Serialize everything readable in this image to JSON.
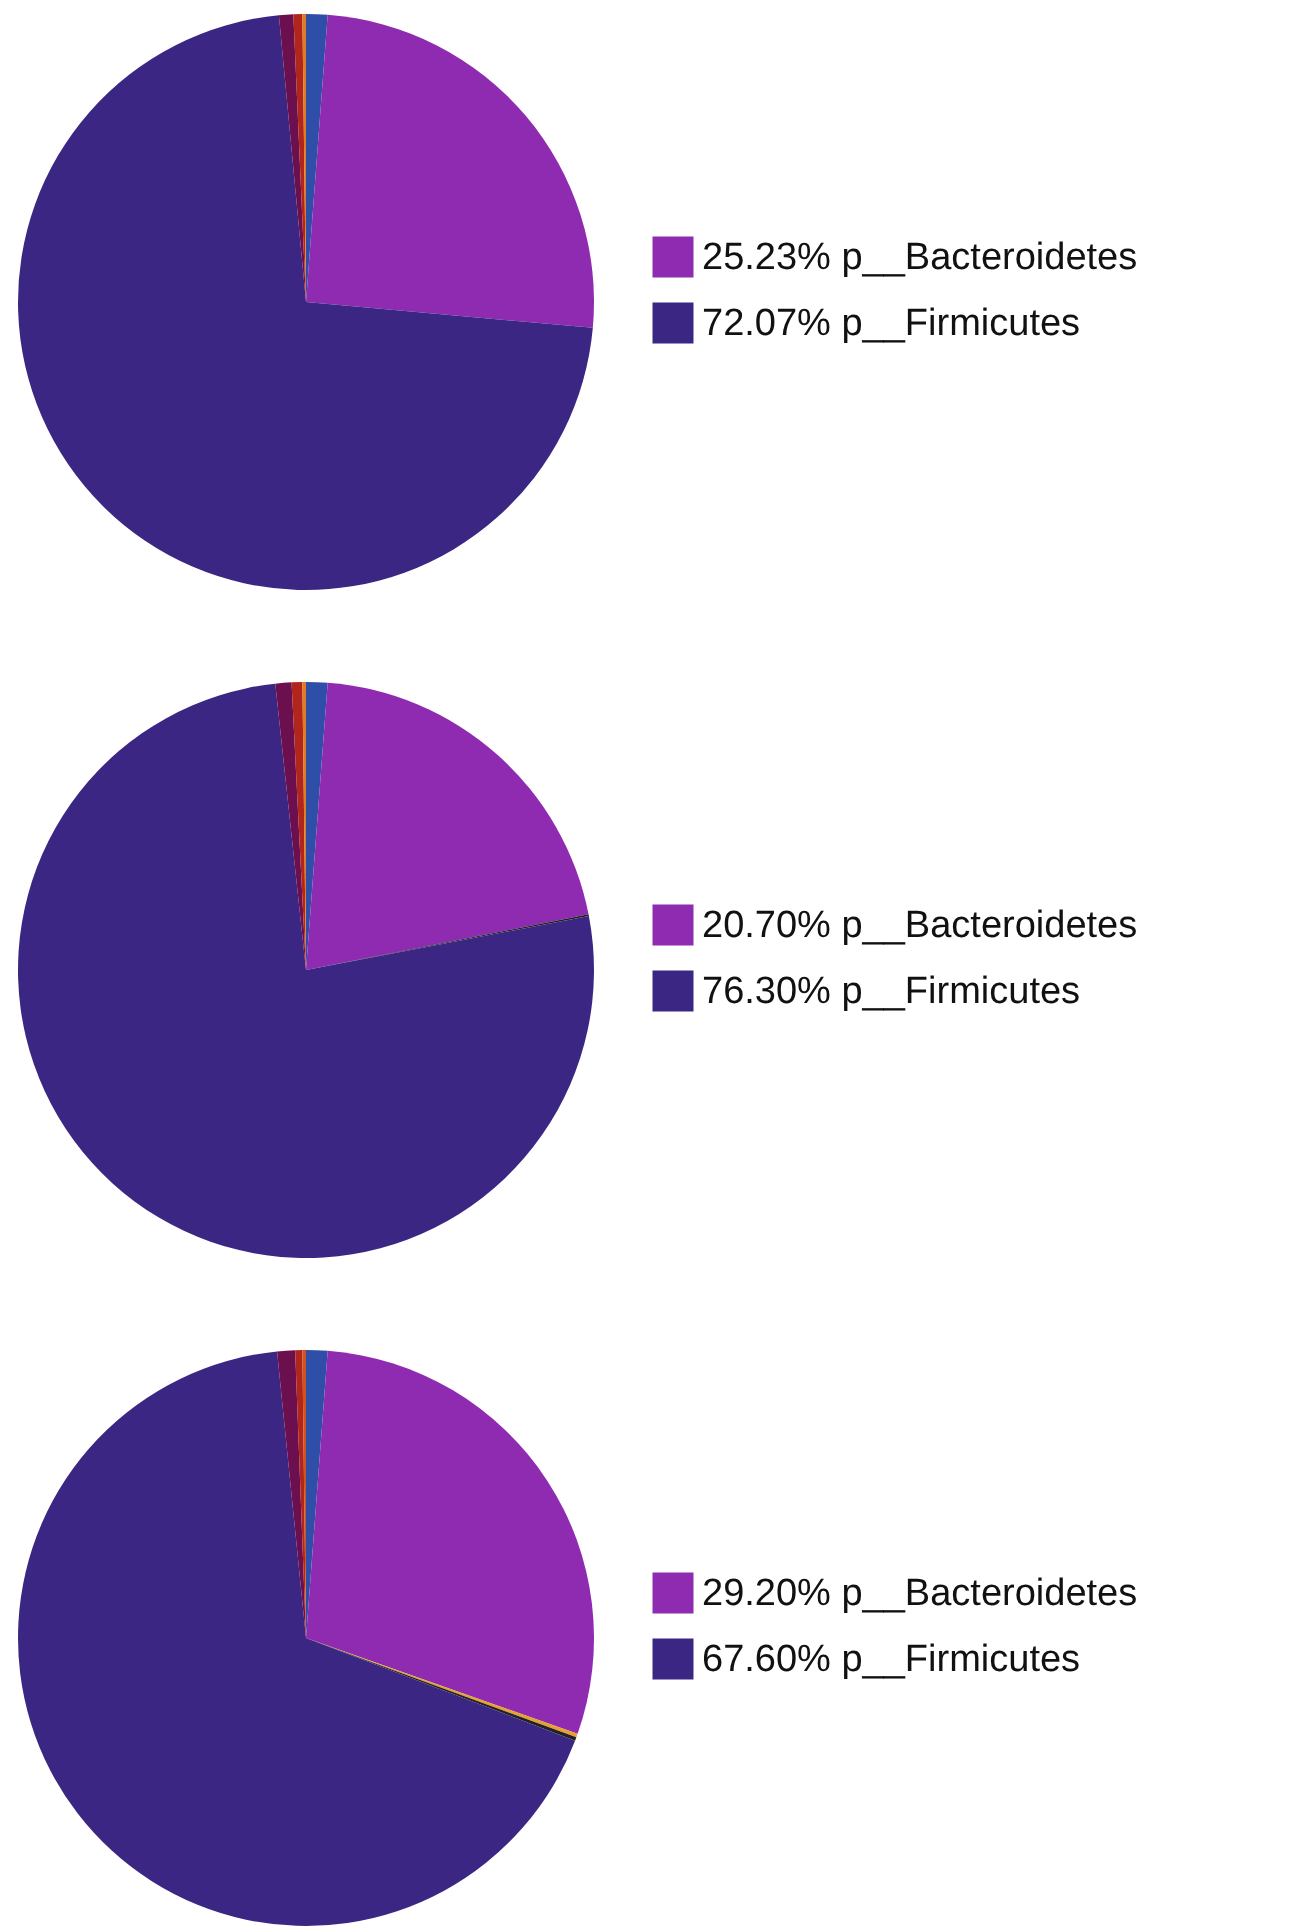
{
  "chart_data": [
    {
      "type": "pie",
      "categories": [
        null,
        "p__Bacteroidetes",
        "p__Firmicutes",
        null,
        null,
        null
      ],
      "values": [
        1.2,
        25.23,
        72.07,
        0.8,
        0.5,
        0.2
      ],
      "value_labels": [
        null,
        "25.23%",
        "72.07%",
        null,
        null,
        null
      ],
      "colors": [
        "#2f4ea8",
        "#8e2bb0",
        "#3b2783",
        "#6b0f4f",
        "#b0261c",
        "#e07b20"
      ],
      "legend": "right"
    },
    {
      "type": "pie",
      "categories": [
        null,
        "p__Bacteroidetes",
        null,
        "p__Firmicutes",
        null,
        null,
        null
      ],
      "values": [
        1.2,
        20.7,
        0.1,
        76.3,
        0.9,
        0.6,
        0.2
      ],
      "value_labels": [
        null,
        "20.70%",
        null,
        "76.30%",
        null,
        null,
        null
      ],
      "colors": [
        "#2f4ea8",
        "#8e2bb0",
        "#222222",
        "#3b2783",
        "#6b0f4f",
        "#b0261c",
        "#e07b20"
      ],
      "legend": "right"
    },
    {
      "type": "pie",
      "categories": [
        null,
        "p__Bacteroidetes",
        null,
        null,
        "p__Firmicutes",
        null,
        null,
        null
      ],
      "values": [
        1.2,
        29.2,
        0.2,
        0.2,
        67.6,
        1.0,
        0.4,
        0.2
      ],
      "value_labels": [
        null,
        "29.20%",
        null,
        null,
        "67.60%",
        null,
        null,
        null
      ],
      "colors": [
        "#2f4ea8",
        "#8e2bb0",
        "#e8a030",
        "#222222",
        "#3b2783",
        "#6b0f4f",
        "#b0261c",
        "#d0521c"
      ],
      "legend": "right"
    }
  ]
}
